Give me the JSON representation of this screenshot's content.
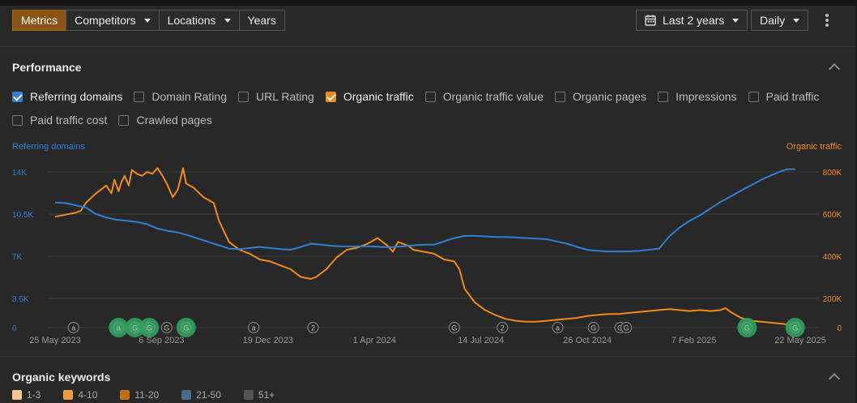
{
  "toolbar": {
    "tabs": [
      {
        "label": "Metrics",
        "active": true,
        "dropdown": false
      },
      {
        "label": "Competitors",
        "active": false,
        "dropdown": true
      },
      {
        "label": "Locations",
        "active": false,
        "dropdown": true
      },
      {
        "label": "Years",
        "active": false,
        "dropdown": false
      }
    ],
    "date_range": "Last 2 years",
    "interval": "Daily",
    "icons": {
      "calendar": "calendar-icon",
      "menu": "more-vertical-icon"
    }
  },
  "performance": {
    "title": "Performance",
    "metrics": [
      {
        "label": "Referring domains",
        "checked": true,
        "color": "#2f80d4"
      },
      {
        "label": "Domain Rating",
        "checked": false
      },
      {
        "label": "URL Rating",
        "checked": false
      },
      {
        "label": "Organic traffic",
        "checked": true,
        "color": "#f08b1a"
      },
      {
        "label": "Organic traffic value",
        "checked": false
      },
      {
        "label": "Organic pages",
        "checked": false
      },
      {
        "label": "Impressions",
        "checked": false
      },
      {
        "label": "Paid traffic",
        "checked": false
      },
      {
        "label": "Paid traffic cost",
        "checked": false
      },
      {
        "label": "Crawled pages",
        "checked": false
      }
    ]
  },
  "chart_data": {
    "type": "line",
    "left_axis_label": "Referring domains",
    "right_axis_label": "Organic traffic",
    "left_ticks": [
      "14K",
      "10.5K",
      "7K",
      "3.5K",
      "0"
    ],
    "right_ticks": [
      "800K",
      "600K",
      "400K",
      "200K",
      "0"
    ],
    "ylim_left": [
      0,
      14000
    ],
    "ylim_right": [
      0,
      800000
    ],
    "x_labels": [
      "25 May 2023",
      "6 Sep 2023",
      "19 Dec 2023",
      "1 Apr 2024",
      "14 Jul 2024",
      "26 Oct 2024",
      "7 Feb 2025",
      "22 May 2025"
    ],
    "x_range_days": [
      0,
      728
    ],
    "x_label_days": [
      0,
      104,
      208,
      312,
      416,
      520,
      624,
      728
    ],
    "series": [
      {
        "name": "Referring domains",
        "axis": "left",
        "color": "#2f80d4",
        "points": [
          [
            0,
            11250
          ],
          [
            10,
            11200
          ],
          [
            20,
            11000
          ],
          [
            30,
            10800
          ],
          [
            40,
            10200
          ],
          [
            50,
            9900
          ],
          [
            60,
            9700
          ],
          [
            70,
            9600
          ],
          [
            80,
            9500
          ],
          [
            90,
            9300
          ],
          [
            100,
            8900
          ],
          [
            110,
            8700
          ],
          [
            120,
            8550
          ],
          [
            130,
            8300
          ],
          [
            140,
            8000
          ],
          [
            150,
            7700
          ],
          [
            160,
            7400
          ],
          [
            170,
            7100
          ],
          [
            180,
            7050
          ],
          [
            190,
            7150
          ],
          [
            200,
            7250
          ],
          [
            210,
            7150
          ],
          [
            220,
            7050
          ],
          [
            230,
            7000
          ],
          [
            240,
            7250
          ],
          [
            250,
            7550
          ],
          [
            260,
            7450
          ],
          [
            270,
            7350
          ],
          [
            280,
            7300
          ],
          [
            290,
            7300
          ],
          [
            300,
            7300
          ],
          [
            310,
            7300
          ],
          [
            320,
            7250
          ],
          [
            330,
            7250
          ],
          [
            340,
            7300
          ],
          [
            350,
            7400
          ],
          [
            360,
            7450
          ],
          [
            370,
            7450
          ],
          [
            380,
            7750
          ],
          [
            390,
            8050
          ],
          [
            400,
            8250
          ],
          [
            410,
            8250
          ],
          [
            420,
            8200
          ],
          [
            430,
            8150
          ],
          [
            440,
            8150
          ],
          [
            450,
            8100
          ],
          [
            460,
            8050
          ],
          [
            470,
            8000
          ],
          [
            480,
            7950
          ],
          [
            490,
            7750
          ],
          [
            500,
            7550
          ],
          [
            510,
            7250
          ],
          [
            520,
            7000
          ],
          [
            530,
            6900
          ],
          [
            540,
            6850
          ],
          [
            550,
            6850
          ],
          [
            560,
            6850
          ],
          [
            570,
            6900
          ],
          [
            580,
            7000
          ],
          [
            590,
            7100
          ],
          [
            600,
            8200
          ],
          [
            610,
            9000
          ],
          [
            620,
            9600
          ],
          [
            630,
            10100
          ],
          [
            640,
            10700
          ],
          [
            650,
            11300
          ],
          [
            660,
            11800
          ],
          [
            670,
            12300
          ],
          [
            680,
            12800
          ],
          [
            690,
            13300
          ],
          [
            700,
            13700
          ],
          [
            710,
            14100
          ],
          [
            716,
            14250
          ],
          [
            723,
            14250
          ]
        ]
      },
      {
        "name": "Organic traffic",
        "axis": "right",
        "color": "#f08b1a",
        "points": [
          [
            0,
            570000
          ],
          [
            10,
            580000
          ],
          [
            20,
            590000
          ],
          [
            25,
            600000
          ],
          [
            30,
            640000
          ],
          [
            40,
            690000
          ],
          [
            50,
            730000
          ],
          [
            55,
            690000
          ],
          [
            58,
            760000
          ],
          [
            62,
            700000
          ],
          [
            65,
            750000
          ],
          [
            68,
            780000
          ],
          [
            72,
            730000
          ],
          [
            75,
            810000
          ],
          [
            80,
            790000
          ],
          [
            85,
            780000
          ],
          [
            90,
            800000
          ],
          [
            95,
            790000
          ],
          [
            100,
            820000
          ],
          [
            105,
            780000
          ],
          [
            110,
            730000
          ],
          [
            115,
            670000
          ],
          [
            120,
            710000
          ],
          [
            125,
            820000
          ],
          [
            128,
            740000
          ],
          [
            135,
            720000
          ],
          [
            145,
            670000
          ],
          [
            155,
            640000
          ],
          [
            160,
            550000
          ],
          [
            170,
            440000
          ],
          [
            180,
            400000
          ],
          [
            190,
            380000
          ],
          [
            200,
            350000
          ],
          [
            210,
            340000
          ],
          [
            220,
            320000
          ],
          [
            230,
            300000
          ],
          [
            240,
            260000
          ],
          [
            250,
            250000
          ],
          [
            255,
            260000
          ],
          [
            265,
            300000
          ],
          [
            275,
            360000
          ],
          [
            285,
            400000
          ],
          [
            295,
            410000
          ],
          [
            305,
            430000
          ],
          [
            315,
            460000
          ],
          [
            325,
            420000
          ],
          [
            330,
            390000
          ],
          [
            335,
            440000
          ],
          [
            345,
            420000
          ],
          [
            350,
            400000
          ],
          [
            360,
            390000
          ],
          [
            370,
            380000
          ],
          [
            380,
            350000
          ],
          [
            390,
            340000
          ],
          [
            395,
            300000
          ],
          [
            400,
            200000
          ],
          [
            410,
            130000
          ],
          [
            420,
            90000
          ],
          [
            430,
            65000
          ],
          [
            440,
            45000
          ],
          [
            450,
            35000
          ],
          [
            460,
            30000
          ],
          [
            470,
            30000
          ],
          [
            480,
            35000
          ],
          [
            490,
            40000
          ],
          [
            500,
            45000
          ],
          [
            510,
            50000
          ],
          [
            520,
            60000
          ],
          [
            530,
            65000
          ],
          [
            540,
            70000
          ],
          [
            550,
            70000
          ],
          [
            560,
            75000
          ],
          [
            570,
            80000
          ],
          [
            580,
            85000
          ],
          [
            590,
            90000
          ],
          [
            600,
            95000
          ],
          [
            610,
            90000
          ],
          [
            620,
            85000
          ],
          [
            630,
            90000
          ],
          [
            640,
            85000
          ],
          [
            650,
            90000
          ],
          [
            655,
            100000
          ],
          [
            660,
            80000
          ],
          [
            670,
            50000
          ],
          [
            680,
            35000
          ],
          [
            690,
            30000
          ],
          [
            700,
            25000
          ],
          [
            710,
            20000
          ],
          [
            716,
            15000
          ],
          [
            723,
            10000
          ]
        ]
      }
    ],
    "annotations": [
      {
        "day": 18,
        "letter": "a"
      },
      {
        "day": 62,
        "letter": "a",
        "highlight": true
      },
      {
        "day": 78,
        "letter": "G",
        "highlight": true
      },
      {
        "day": 92,
        "letter": "G",
        "highlight": true
      },
      {
        "day": 109,
        "letter": "G"
      },
      {
        "day": 128,
        "letter": "G",
        "highlight": true
      },
      {
        "day": 194,
        "letter": "a"
      },
      {
        "day": 252,
        "letter": "2"
      },
      {
        "day": 390,
        "letter": "G"
      },
      {
        "day": 437,
        "letter": "2"
      },
      {
        "day": 491,
        "letter": "a"
      },
      {
        "day": 526,
        "letter": "G"
      },
      {
        "day": 552,
        "letter": "G"
      },
      {
        "day": 558,
        "letter": "G"
      },
      {
        "day": 676,
        "letter": "G",
        "highlight": true
      },
      {
        "day": 723,
        "letter": "G",
        "highlight": true
      }
    ]
  },
  "organic_keywords": {
    "title": "Organic keywords",
    "legend": [
      {
        "label": "1-3",
        "color": "#f6c88e"
      },
      {
        "label": "4-10",
        "color": "#ef9a3b"
      },
      {
        "label": "11-20",
        "color": "#c06f18"
      },
      {
        "label": "21-50",
        "color": "#4a6a8a"
      },
      {
        "label": "51+",
        "color": "#555555"
      }
    ]
  }
}
